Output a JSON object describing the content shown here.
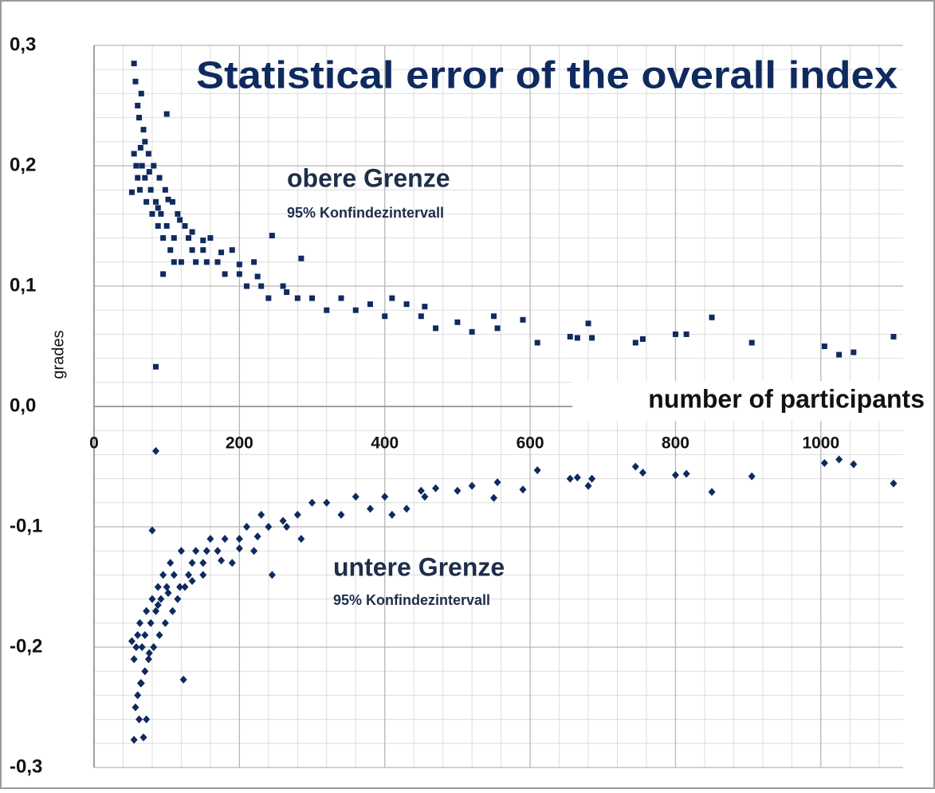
{
  "chart_data": {
    "type": "scatter",
    "title": "Statistical error of the overall index",
    "x_label": "number of participants",
    "y_label": "grades",
    "annotations": [
      "obere Grenze",
      "95%  Konfindezintervall",
      "untere Grenze",
      "95%  Konfindezintervall"
    ],
    "xlim": [
      0,
      1100
    ],
    "ylim": [
      -0.3,
      0.3
    ],
    "xticks": [
      0,
      200,
      400,
      600,
      800,
      1000
    ],
    "yticks": [
      {
        "value": 0.3,
        "label": "0,3"
      },
      {
        "value": 0.2,
        "label": "0,2"
      },
      {
        "value": 0.1,
        "label": "0,1"
      },
      {
        "value": 0,
        "label": "0,0"
      },
      {
        "value": -0.1,
        "label": "-0,1"
      },
      {
        "value": -0.2,
        "label": "-0,2"
      },
      {
        "value": -0.3,
        "label": "-0,3"
      }
    ],
    "grid": true,
    "series": [
      {
        "color": "#0f2a5e",
        "marker": "square",
        "x": [
          55,
          57,
          60,
          62,
          65,
          68,
          70,
          55,
          58,
          60,
          63,
          66,
          70,
          72,
          75,
          78,
          80,
          82,
          85,
          88,
          90,
          92,
          95,
          98,
          100,
          105,
          108,
          110,
          115,
          120,
          125,
          130,
          135,
          140,
          150,
          155,
          160,
          170,
          180,
          190,
          200,
          210,
          220,
          230,
          240,
          245,
          260,
          280,
          285,
          300,
          320,
          340,
          360,
          380,
          400,
          410,
          430,
          450,
          455,
          470,
          500,
          520,
          550,
          555,
          590,
          610,
          655,
          665,
          680,
          685,
          745,
          755,
          800,
          815,
          850,
          905,
          1005,
          1025,
          1045,
          1100,
          100,
          85,
          95,
          110,
          52,
          64,
          76,
          88,
          102,
          118,
          135,
          150,
          175,
          200,
          225,
          265
        ],
        "values": [
          0.285,
          0.27,
          0.25,
          0.24,
          0.26,
          0.23,
          0.22,
          0.21,
          0.2,
          0.19,
          0.18,
          0.2,
          0.19,
          0.17,
          0.21,
          0.18,
          0.16,
          0.2,
          0.17,
          0.15,
          0.19,
          0.16,
          0.14,
          0.18,
          0.15,
          0.13,
          0.17,
          0.14,
          0.16,
          0.12,
          0.15,
          0.14,
          0.13,
          0.12,
          0.13,
          0.12,
          0.14,
          0.12,
          0.11,
          0.13,
          0.11,
          0.1,
          0.12,
          0.1,
          0.09,
          0.142,
          0.1,
          0.09,
          0.123,
          0.09,
          0.08,
          0.09,
          0.08,
          0.085,
          0.075,
          0.09,
          0.085,
          0.075,
          0.083,
          0.065,
          0.07,
          0.062,
          0.075,
          0.065,
          0.072,
          0.053,
          0.058,
          0.057,
          0.069,
          0.057,
          0.053,
          0.056,
          0.06,
          0.06,
          0.074,
          0.053,
          0.05,
          0.043,
          0.045,
          0.058,
          0.243,
          0.033,
          0.11,
          0.12,
          0.178,
          0.215,
          0.195,
          0.165,
          0.172,
          0.155,
          0.145,
          0.138,
          0.128,
          0.118,
          0.108,
          0.095
        ]
      },
      {
        "color": "#0f2a5e",
        "marker": "diamond",
        "x": [
          55,
          57,
          60,
          62,
          65,
          68,
          70,
          55,
          58,
          60,
          63,
          66,
          70,
          72,
          75,
          78,
          80,
          82,
          85,
          88,
          90,
          92,
          95,
          98,
          100,
          105,
          108,
          110,
          115,
          120,
          125,
          130,
          135,
          140,
          150,
          155,
          160,
          170,
          180,
          190,
          200,
          210,
          220,
          230,
          240,
          245,
          260,
          280,
          285,
          300,
          320,
          340,
          360,
          380,
          400,
          410,
          430,
          450,
          455,
          470,
          500,
          520,
          550,
          555,
          590,
          610,
          655,
          665,
          680,
          685,
          745,
          755,
          800,
          815,
          850,
          905,
          1005,
          1025,
          1045,
          1100,
          85,
          123,
          80,
          72,
          52,
          64,
          76,
          88,
          102,
          118,
          135,
          150,
          175,
          200,
          225,
          265
        ],
        "values": [
          -0.277,
          -0.25,
          -0.24,
          -0.26,
          -0.23,
          -0.275,
          -0.22,
          -0.21,
          -0.2,
          -0.19,
          -0.18,
          -0.2,
          -0.19,
          -0.17,
          -0.21,
          -0.18,
          -0.16,
          -0.2,
          -0.17,
          -0.15,
          -0.19,
          -0.16,
          -0.14,
          -0.18,
          -0.15,
          -0.13,
          -0.17,
          -0.14,
          -0.16,
          -0.12,
          -0.15,
          -0.14,
          -0.13,
          -0.12,
          -0.13,
          -0.12,
          -0.11,
          -0.12,
          -0.11,
          -0.13,
          -0.11,
          -0.1,
          -0.12,
          -0.09,
          -0.1,
          -0.14,
          -0.095,
          -0.09,
          -0.11,
          -0.08,
          -0.08,
          -0.09,
          -0.075,
          -0.085,
          -0.075,
          -0.09,
          -0.085,
          -0.07,
          -0.075,
          -0.068,
          -0.07,
          -0.066,
          -0.076,
          -0.063,
          -0.069,
          -0.053,
          -0.06,
          -0.059,
          -0.066,
          -0.06,
          -0.05,
          -0.055,
          -0.057,
          -0.056,
          -0.071,
          -0.058,
          -0.047,
          -0.044,
          -0.048,
          -0.064,
          -0.037,
          -0.227,
          -0.103,
          -0.26,
          -0.195,
          -0.23,
          -0.205,
          -0.165,
          -0.155,
          -0.15,
          -0.145,
          -0.14,
          -0.128,
          -0.118,
          -0.108,
          -0.1
        ]
      }
    ]
  }
}
